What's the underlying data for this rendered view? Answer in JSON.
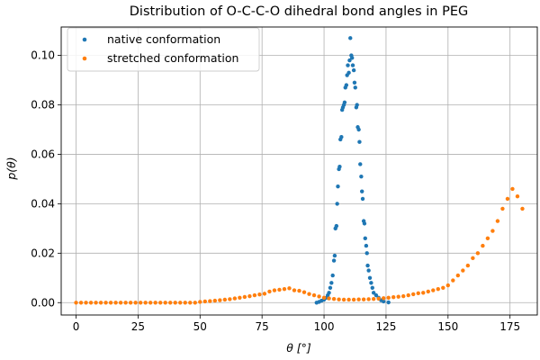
{
  "chart_data": {
    "type": "scatter",
    "title": "Distribution of O-C-C-O dihedral bond angles in PEG",
    "xlabel": "θ [°]",
    "ylabel": "p(θ)",
    "xlim": [
      -6,
      186
    ],
    "ylim": [
      -0.005,
      0.1115
    ],
    "x_ticks": [
      0,
      25,
      50,
      75,
      100,
      125,
      150,
      175
    ],
    "y_ticks": [
      0.0,
      0.02,
      0.04,
      0.06,
      0.08,
      0.1
    ],
    "x_tick_labels": [
      "0",
      "25",
      "50",
      "75",
      "100",
      "125",
      "150",
      "175"
    ],
    "y_tick_labels": [
      "0.00",
      "0.02",
      "0.04",
      "0.06",
      "0.08",
      "0.10"
    ],
    "grid": true,
    "legend_position": "top-left",
    "series": [
      {
        "name": "native conformation",
        "color": "#1f77b4",
        "points": [
          [
            97,
            0.0
          ],
          [
            98,
            0.0003
          ],
          [
            99,
            0.0008
          ],
          [
            100,
            0.0012
          ],
          [
            101,
            0.002
          ],
          [
            101.5,
            0.003
          ],
          [
            102,
            0.004
          ],
          [
            102.5,
            0.006
          ],
          [
            103,
            0.008
          ],
          [
            103.5,
            0.011
          ],
          [
            104,
            0.017
          ],
          [
            104.3,
            0.019
          ],
          [
            104.6,
            0.03
          ],
          [
            105,
            0.031
          ],
          [
            105.3,
            0.04
          ],
          [
            105.6,
            0.047
          ],
          [
            106,
            0.054
          ],
          [
            106.3,
            0.055
          ],
          [
            106.6,
            0.066
          ],
          [
            107,
            0.067
          ],
          [
            107.3,
            0.078
          ],
          [
            107.6,
            0.079
          ],
          [
            108,
            0.08
          ],
          [
            108.3,
            0.081
          ],
          [
            108.6,
            0.087
          ],
          [
            109,
            0.088
          ],
          [
            109.3,
            0.092
          ],
          [
            109.6,
            0.096
          ],
          [
            110,
            0.093
          ],
          [
            110.3,
            0.098
          ],
          [
            110.6,
            0.107
          ],
          [
            111,
            0.1
          ],
          [
            111.3,
            0.099
          ],
          [
            111.6,
            0.096
          ],
          [
            112,
            0.094
          ],
          [
            112.3,
            0.089
          ],
          [
            112.6,
            0.087
          ],
          [
            113,
            0.079
          ],
          [
            113.3,
            0.08
          ],
          [
            113.6,
            0.071
          ],
          [
            114,
            0.07
          ],
          [
            114.3,
            0.065
          ],
          [
            114.6,
            0.056
          ],
          [
            115,
            0.051
          ],
          [
            115.3,
            0.045
          ],
          [
            115.6,
            0.042
          ],
          [
            116,
            0.033
          ],
          [
            116.3,
            0.032
          ],
          [
            116.6,
            0.026
          ],
          [
            117,
            0.023
          ],
          [
            117.3,
            0.02
          ],
          [
            117.6,
            0.015
          ],
          [
            118,
            0.013
          ],
          [
            118.5,
            0.01
          ],
          [
            119,
            0.008
          ],
          [
            119.5,
            0.006
          ],
          [
            120,
            0.004
          ],
          [
            121,
            0.003
          ],
          [
            122,
            0.002
          ],
          [
            123,
            0.001
          ],
          [
            124,
            0.0005
          ],
          [
            126,
            0.0001
          ]
        ]
      },
      {
        "name": "stretched conformation",
        "color": "#ff7f0e",
        "points": [
          [
            0,
            0
          ],
          [
            2,
            0
          ],
          [
            4,
            0
          ],
          [
            6,
            0
          ],
          [
            8,
            0
          ],
          [
            10,
            0
          ],
          [
            12,
            0
          ],
          [
            14,
            0
          ],
          [
            16,
            0
          ],
          [
            18,
            0
          ],
          [
            20,
            0
          ],
          [
            22,
            0
          ],
          [
            24,
            0
          ],
          [
            26,
            0
          ],
          [
            28,
            0
          ],
          [
            30,
            0
          ],
          [
            32,
            0
          ],
          [
            34,
            0
          ],
          [
            36,
            0
          ],
          [
            38,
            0
          ],
          [
            40,
            0
          ],
          [
            42,
            0
          ],
          [
            44,
            0
          ],
          [
            46,
            0
          ],
          [
            48,
            0
          ],
          [
            50,
            0.0003
          ],
          [
            52,
            0.0005
          ],
          [
            54,
            0.0006
          ],
          [
            56,
            0.0008
          ],
          [
            58,
            0.001
          ],
          [
            60,
            0.0012
          ],
          [
            62,
            0.0014
          ],
          [
            64,
            0.0017
          ],
          [
            66,
            0.002
          ],
          [
            68,
            0.0023
          ],
          [
            70,
            0.0026
          ],
          [
            72,
            0.003
          ],
          [
            74,
            0.0033
          ],
          [
            76,
            0.0036
          ],
          [
            78,
            0.0045
          ],
          [
            80,
            0.005
          ],
          [
            82,
            0.0052
          ],
          [
            84,
            0.0055
          ],
          [
            86,
            0.0058
          ],
          [
            88,
            0.005
          ],
          [
            90,
            0.0048
          ],
          [
            92,
            0.0042
          ],
          [
            94,
            0.0035
          ],
          [
            96,
            0.003
          ],
          [
            98,
            0.0025
          ],
          [
            100,
            0.002
          ],
          [
            102,
            0.0017
          ],
          [
            104,
            0.0015
          ],
          [
            106,
            0.0013
          ],
          [
            108,
            0.0012
          ],
          [
            110,
            0.0012
          ],
          [
            112,
            0.0012
          ],
          [
            114,
            0.0013
          ],
          [
            116,
            0.0013
          ],
          [
            118,
            0.0014
          ],
          [
            120,
            0.0015
          ],
          [
            122,
            0.0016
          ],
          [
            124,
            0.0018
          ],
          [
            126,
            0.002
          ],
          [
            128,
            0.0022
          ],
          [
            130,
            0.0024
          ],
          [
            132,
            0.0026
          ],
          [
            134,
            0.003
          ],
          [
            136,
            0.0034
          ],
          [
            138,
            0.0038
          ],
          [
            140,
            0.004
          ],
          [
            142,
            0.0045
          ],
          [
            144,
            0.005
          ],
          [
            146,
            0.0055
          ],
          [
            148,
            0.006
          ],
          [
            150,
            0.007
          ],
          [
            152,
            0.009
          ],
          [
            154,
            0.011
          ],
          [
            156,
            0.013
          ],
          [
            158,
            0.015
          ],
          [
            160,
            0.018
          ],
          [
            162,
            0.02
          ],
          [
            164,
            0.023
          ],
          [
            166,
            0.026
          ],
          [
            168,
            0.029
          ],
          [
            170,
            0.033
          ],
          [
            172,
            0.038
          ],
          [
            174,
            0.042
          ],
          [
            176,
            0.046
          ],
          [
            178,
            0.043
          ],
          [
            180,
            0.038
          ]
        ]
      }
    ]
  }
}
